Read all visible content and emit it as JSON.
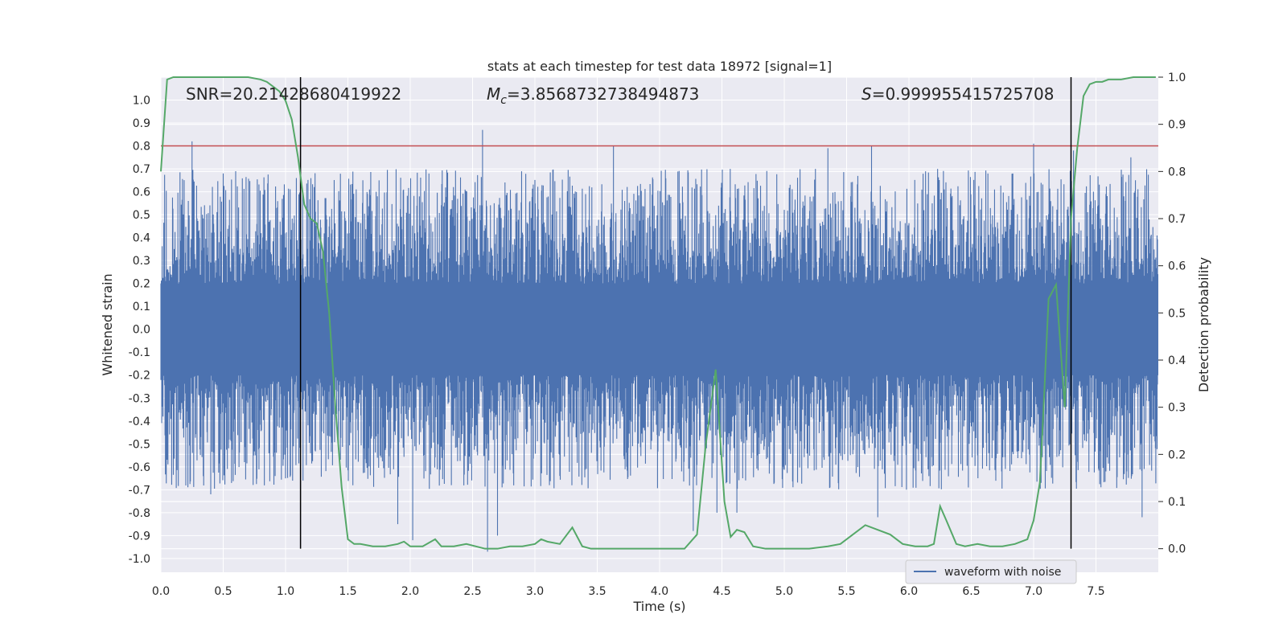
{
  "chart_data": {
    "type": "line",
    "title": "stats at each timestep for test data 18972 [signal=1]",
    "xlabel": "Time (s)",
    "ylabel": "Whitened strain",
    "y2label": "Detection probability",
    "xlim": [
      0.0,
      8.0
    ],
    "ylim": [
      -1.06,
      1.1
    ],
    "y2lim": [
      -0.05,
      1.0
    ],
    "xticks": [
      0.0,
      0.5,
      1.0,
      1.5,
      2.0,
      2.5,
      3.0,
      3.5,
      4.0,
      4.5,
      5.0,
      5.5,
      6.0,
      6.5,
      7.0,
      7.5
    ],
    "xtick_labels": [
      "0.0",
      "0.5",
      "1.0",
      "1.5",
      "2.0",
      "2.5",
      "3.0",
      "3.5",
      "4.0",
      "4.5",
      "5.0",
      "5.5",
      "6.0",
      "6.5",
      "7.0",
      "7.5"
    ],
    "yticks": [
      1.0,
      0.9,
      0.8,
      0.7,
      0.6,
      0.5,
      0.4,
      0.3,
      0.2,
      0.1,
      0.0,
      -0.1,
      -0.2,
      -0.3,
      -0.4,
      -0.5,
      -0.6,
      -0.7,
      -0.8,
      -0.9,
      -1.0
    ],
    "ytick_labels": [
      "1.0",
      "0.9",
      "0.8",
      "0.7",
      "0.6",
      "0.5",
      "0.4",
      "0.3",
      "0.2",
      "0.1",
      "0.0",
      "-0.1",
      "-0.2",
      "-0.3",
      "-0.4",
      "-0.5",
      "-0.6",
      "-0.7",
      "-0.8",
      "-0.9",
      "-1.0"
    ],
    "y2ticks": [
      1.0,
      0.9,
      0.8,
      0.7,
      0.6,
      0.5,
      0.4,
      0.3,
      0.2,
      0.1,
      0.0
    ],
    "y2tick_labels": [
      "1.0",
      "0.9",
      "0.8",
      "0.7",
      "0.6",
      "0.5",
      "0.4",
      "0.3",
      "0.2",
      "0.1",
      "0.0"
    ],
    "grid": true,
    "legend": {
      "position": "lower-right",
      "entries": [
        "waveform with noise"
      ]
    },
    "annotations": {
      "snr": "SNR=20.21428680419922",
      "mc_symbol": "M",
      "mc_sub": "c",
      "mc_value": "=3.8568732738494873",
      "s_symbol": "S",
      "s_value": "=0.999955415725708"
    },
    "threshold": {
      "y": 0.8,
      "color": "#c44e52"
    },
    "event_lines": {
      "x": [
        1.12,
        7.3
      ],
      "color": "#000000"
    },
    "waveform": {
      "name": "waveform with noise",
      "color": "#4c72b0",
      "duration": 8.0,
      "samples": 2400,
      "typical_amplitude": 0.35,
      "max_amplitude": 0.97,
      "peaks": [
        {
          "t": 0.25,
          "v": 0.82
        },
        {
          "t": 0.4,
          "v": -0.72
        },
        {
          "t": 1.75,
          "v": 0.65
        },
        {
          "t": 1.9,
          "v": -0.85
        },
        {
          "t": 2.02,
          "v": -0.92
        },
        {
          "t": 2.58,
          "v": 0.87
        },
        {
          "t": 2.62,
          "v": -0.97
        },
        {
          "t": 2.7,
          "v": -0.9
        },
        {
          "t": 3.63,
          "v": 0.8
        },
        {
          "t": 4.27,
          "v": -0.88
        },
        {
          "t": 4.46,
          "v": -0.8
        },
        {
          "t": 4.62,
          "v": -0.8
        },
        {
          "t": 5.35,
          "v": 0.79
        },
        {
          "t": 5.7,
          "v": 0.8
        },
        {
          "t": 5.75,
          "v": -0.82
        },
        {
          "t": 7.32,
          "v": 0.78
        },
        {
          "t": 7.0,
          "v": 0.81
        },
        {
          "t": 7.87,
          "v": -0.82
        },
        {
          "t": 7.78,
          "v": 0.75
        },
        {
          "t": 0.5,
          "v": 0.68
        },
        {
          "t": 1.0,
          "v": -0.65
        }
      ]
    },
    "probability": {
      "name": "Detection probability",
      "color": "#55a868",
      "x": [
        0.0,
        0.05,
        0.1,
        0.2,
        0.3,
        0.4,
        0.5,
        0.6,
        0.7,
        0.8,
        0.85,
        0.9,
        0.95,
        1.0,
        1.05,
        1.1,
        1.15,
        1.2,
        1.25,
        1.3,
        1.35,
        1.4,
        1.45,
        1.5,
        1.55,
        1.6,
        1.7,
        1.8,
        1.9,
        1.95,
        2.0,
        2.1,
        2.2,
        2.25,
        2.35,
        2.45,
        2.6,
        2.7,
        2.8,
        2.9,
        3.0,
        3.05,
        3.1,
        3.2,
        3.3,
        3.38,
        3.45,
        3.5,
        3.6,
        3.8,
        4.0,
        4.2,
        4.3,
        4.37,
        4.45,
        4.52,
        4.57,
        4.62,
        4.68,
        4.75,
        4.85,
        5.0,
        5.2,
        5.35,
        5.45,
        5.55,
        5.65,
        5.75,
        5.85,
        5.95,
        6.05,
        6.15,
        6.2,
        6.25,
        6.3,
        6.38,
        6.45,
        6.55,
        6.65,
        6.75,
        6.85,
        6.95,
        7.0,
        7.05,
        7.08,
        7.12,
        7.18,
        7.25,
        7.3,
        7.35,
        7.4,
        7.45,
        7.5,
        7.55,
        7.6,
        7.7,
        7.8,
        7.9,
        7.98
      ],
      "y": [
        0.8,
        0.995,
        1.0,
        1.0,
        1.0,
        1.0,
        1.0,
        1.0,
        1.0,
        0.995,
        0.99,
        0.98,
        0.97,
        0.95,
        0.91,
        0.83,
        0.73,
        0.7,
        0.69,
        0.63,
        0.5,
        0.3,
        0.13,
        0.02,
        0.01,
        0.01,
        0.005,
        0.005,
        0.01,
        0.015,
        0.005,
        0.005,
        0.02,
        0.005,
        0.005,
        0.01,
        0.0,
        0.0,
        0.005,
        0.005,
        0.01,
        0.02,
        0.015,
        0.01,
        0.045,
        0.005,
        0.0,
        0.0,
        0.0,
        0.0,
        0.0,
        0.0,
        0.03,
        0.22,
        0.38,
        0.1,
        0.025,
        0.04,
        0.035,
        0.005,
        0.0,
        0.0,
        0.0,
        0.005,
        0.01,
        0.03,
        0.05,
        0.04,
        0.03,
        0.01,
        0.005,
        0.005,
        0.01,
        0.09,
        0.06,
        0.01,
        0.005,
        0.01,
        0.005,
        0.005,
        0.01,
        0.02,
        0.06,
        0.14,
        0.3,
        0.53,
        0.56,
        0.3,
        0.7,
        0.85,
        0.96,
        0.985,
        0.99,
        0.99,
        0.995,
        0.995,
        1.0,
        1.0,
        1.0
      ]
    }
  }
}
